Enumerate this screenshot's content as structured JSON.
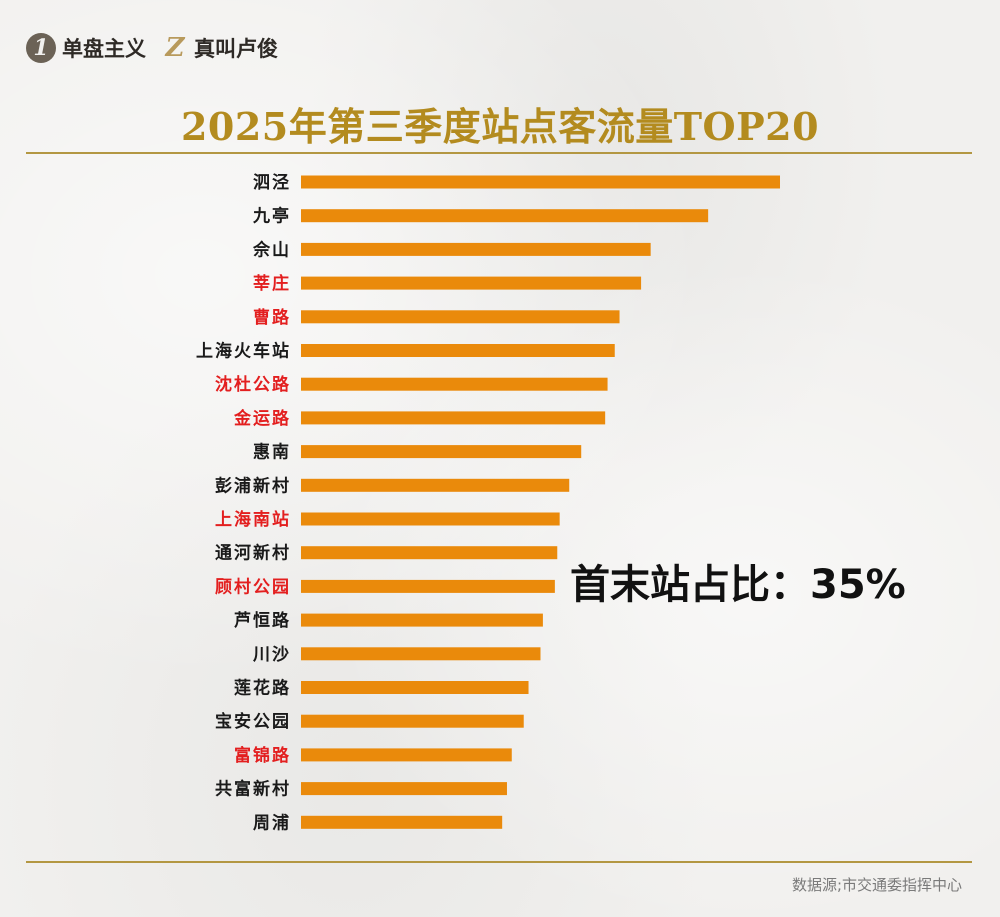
{
  "brand": {
    "badge1": "1",
    "name1": "单盘主义",
    "badge2": "Z",
    "name2": "真叫卢俊"
  },
  "callout": "首末站占比：35%",
  "source": "数据源;市交通委指挥中心",
  "colors": {
    "bar": "#ea8a0b",
    "highlight_label": "#e31f1f",
    "normal_label": "#1a1a1a",
    "title": "#b38b1f",
    "rule": "#b39742"
  },
  "chart_data": {
    "type": "bar",
    "orientation": "horizontal",
    "title": "2025年第三季度站点客流量TOP20",
    "xlabel": "",
    "ylabel": "",
    "grid": false,
    "categories": [
      "泗泾",
      "九亭",
      "佘山",
      "莘庄",
      "曹路",
      "上海火车站",
      "沈杜公路",
      "金运路",
      "惠南",
      "彭浦新村",
      "上海南站",
      "通河新村",
      "顾村公园",
      "芦恒路",
      "川沙",
      "莲花路",
      "宝安公园",
      "富锦路",
      "共富新村",
      "周浦"
    ],
    "values": [
      100,
      85,
      73,
      71,
      66.5,
      65.5,
      64,
      63.5,
      58.5,
      56,
      54,
      53.5,
      53,
      50.5,
      50,
      47.5,
      46.5,
      44,
      43,
      42
    ],
    "highlighted": [
      false,
      false,
      false,
      true,
      true,
      false,
      true,
      true,
      false,
      false,
      true,
      false,
      true,
      false,
      false,
      false,
      false,
      true,
      false,
      false
    ],
    "xlim": [
      0,
      100
    ]
  }
}
